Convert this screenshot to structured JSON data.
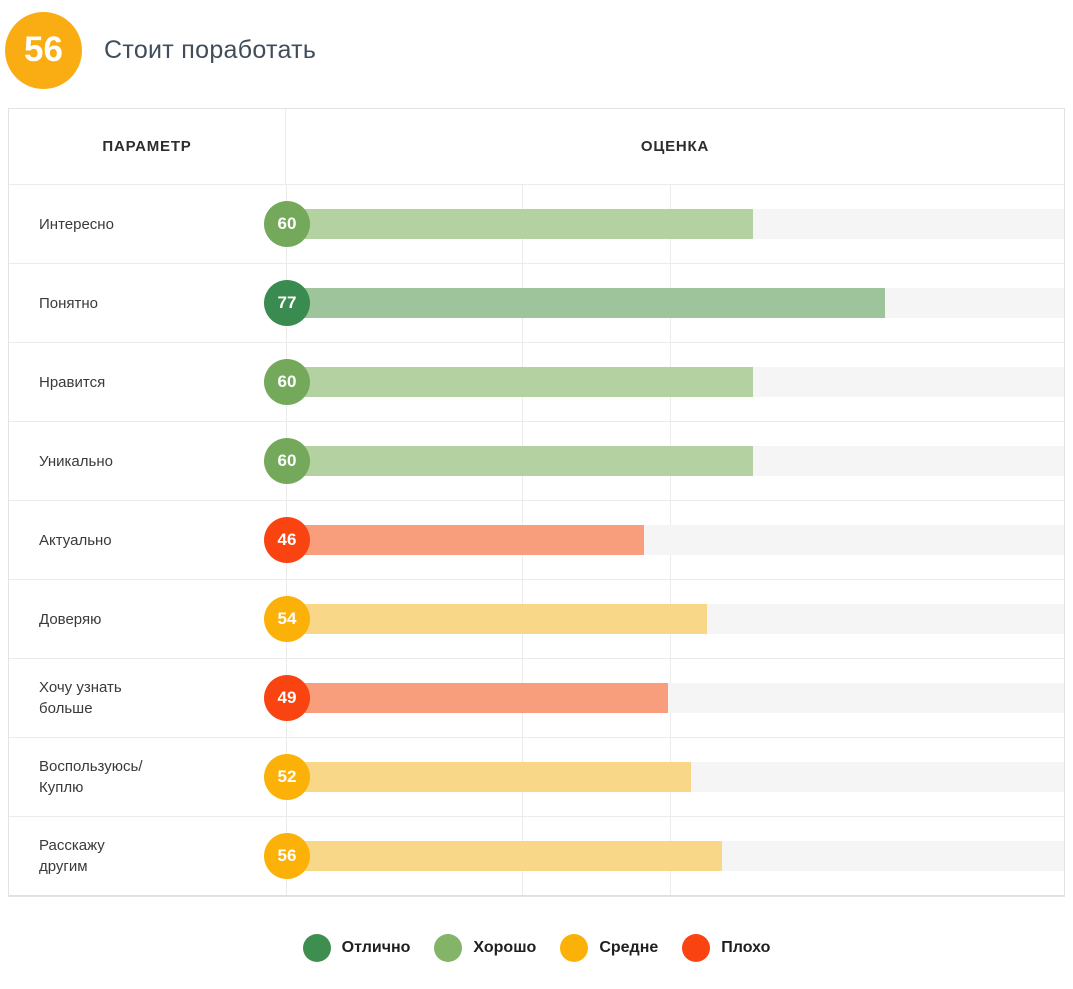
{
  "header": {
    "score": "56",
    "score_color": "#f9ad12",
    "title": "Стоит поработать"
  },
  "table": {
    "columns": {
      "parameter": "ПАРАМЕТР",
      "score": "ОЦЕНКА"
    },
    "rows": [
      {
        "label": "Интересно",
        "value": 60,
        "category": "good"
      },
      {
        "label": "Понятно",
        "value": 77,
        "category": "excellent"
      },
      {
        "label": "Нравится",
        "value": 60,
        "category": "good"
      },
      {
        "label": "Уникально",
        "value": 60,
        "category": "good"
      },
      {
        "label": "Актуально",
        "value": 46,
        "category": "bad"
      },
      {
        "label": "Доверяю",
        "value": 54,
        "category": "average"
      },
      {
        "label": "Хочу узнать\nбольше",
        "value": 49,
        "category": "bad"
      },
      {
        "label": "Воспользуюсь/\nКуплю",
        "value": 52,
        "category": "average"
      },
      {
        "label": "Расскажу\nдругим",
        "value": 56,
        "category": "average"
      }
    ]
  },
  "palette": {
    "excellent": {
      "circle": "#3a8b50",
      "bar": "#9dc49b"
    },
    "good": {
      "circle": "#74a95c",
      "bar": "#b4d2a1"
    },
    "average": {
      "circle": "#fbb108",
      "bar": "#f8d888"
    },
    "bad": {
      "circle": "#f94310",
      "bar": "#f89e7d"
    },
    "track": "#f5f5f5"
  },
  "legend": [
    {
      "label": "Отлично",
      "color": "#3e8e50"
    },
    {
      "label": "Хорошо",
      "color": "#84b467"
    },
    {
      "label": "Средне",
      "color": "#fbb108"
    },
    {
      "label": "Плохо",
      "color": "#f94310"
    }
  ],
  "chart_data": {
    "type": "bar",
    "orientation": "horizontal",
    "title": "Стоит поработать",
    "overall_score": 56,
    "categories": [
      "Интересно",
      "Понятно",
      "Нравится",
      "Уникально",
      "Актуально",
      "Доверяю",
      "Хочу узнать больше",
      "Воспользуюсь/Куплю",
      "Расскажу другим"
    ],
    "values": [
      60,
      77,
      60,
      60,
      46,
      54,
      49,
      52,
      56
    ],
    "ratings": [
      "Хорошо",
      "Отлично",
      "Хорошо",
      "Хорошо",
      "Плохо",
      "Средне",
      "Плохо",
      "Средне",
      "Средне"
    ],
    "xlim": [
      0,
      100
    ],
    "gridlines_at": [
      30,
      49
    ],
    "legend_entries": [
      "Отлично",
      "Хорошо",
      "Средне",
      "Плохо"
    ],
    "legend_position": "bottom",
    "column_headers": [
      "ПАРАМЕТР",
      "ОЦЕНКА"
    ]
  }
}
